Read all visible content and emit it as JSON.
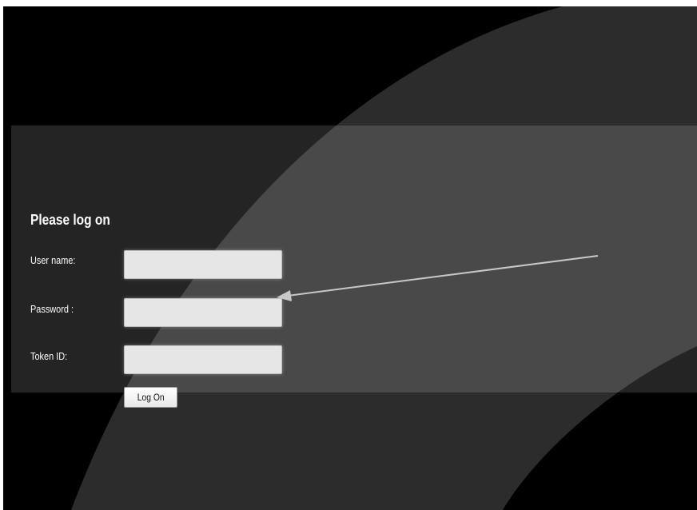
{
  "login": {
    "title": "Please log on",
    "fields": [
      {
        "label": "User name:",
        "value": "",
        "placeholder": ""
      },
      {
        "label": "Password :",
        "value": "",
        "placeholder": ""
      },
      {
        "label": "Token ID:",
        "value": "",
        "placeholder": ""
      }
    ],
    "submit_label": "Log On"
  },
  "annotation": {
    "arrow_color": "#c8c8c8",
    "arrow_target": "password-field"
  },
  "colors": {
    "background": "#000000",
    "band": "#3a3a3a",
    "text": "#ffffff",
    "field": "#e6e6e6"
  }
}
